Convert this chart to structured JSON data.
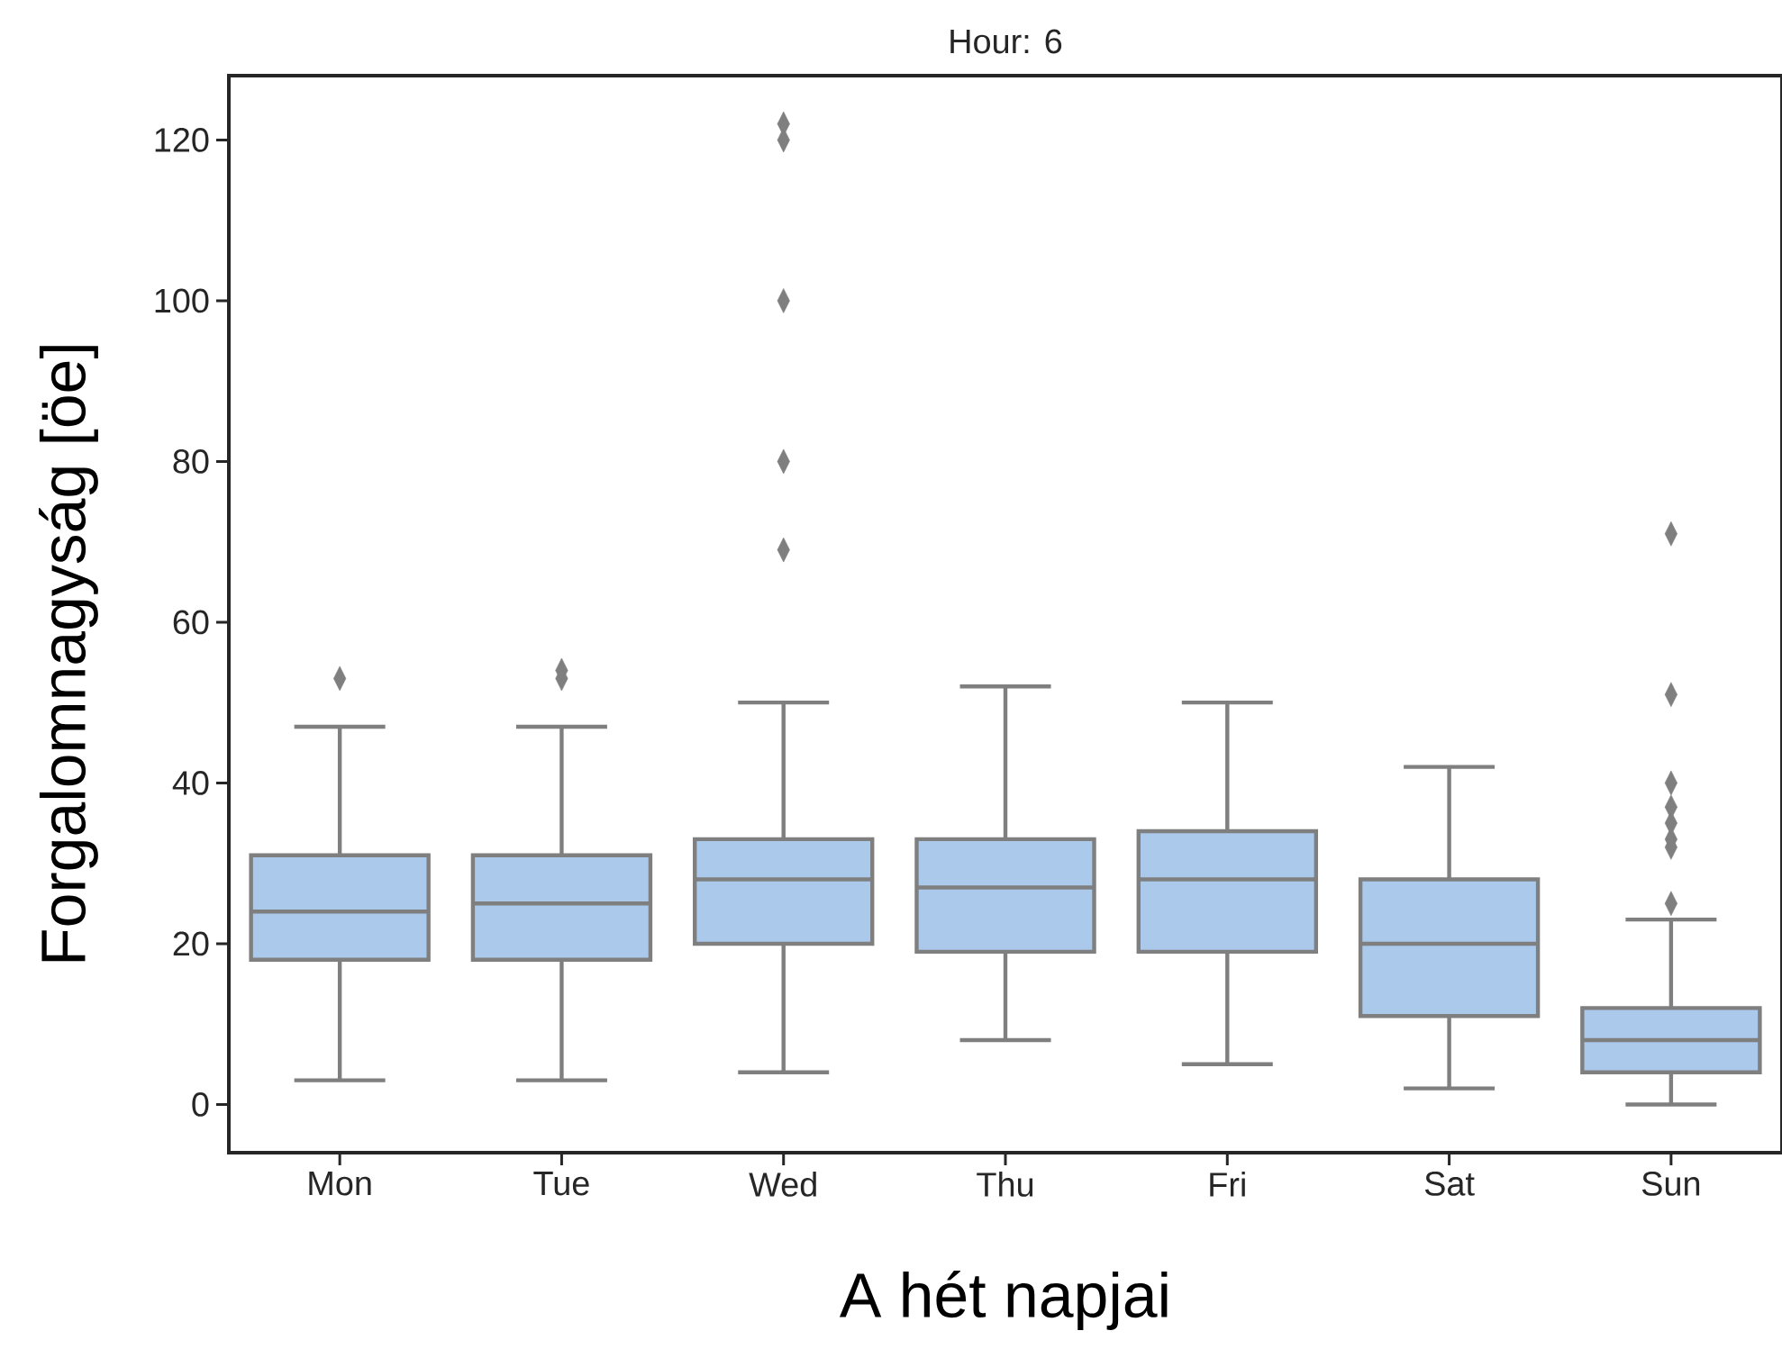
{
  "chart_data": {
    "type": "box",
    "title": "Hour: 6",
    "xlabel": "A hét napjai",
    "ylabel": "Forgalomnagyság [öe]",
    "categories": [
      "Mon",
      "Tue",
      "Wed",
      "Thu",
      "Fri",
      "Sat",
      "Sun"
    ],
    "color": "#abc9eb",
    "marker": "diamond",
    "grid": false,
    "ylim": [
      -6,
      128
    ],
    "yticks": [
      0,
      20,
      40,
      60,
      80,
      100,
      120
    ],
    "boxes": [
      {
        "low": 3,
        "q1": 18,
        "median": 24,
        "q3": 31,
        "high": 47,
        "outliers": [
          53
        ]
      },
      {
        "low": 3,
        "q1": 18,
        "median": 25,
        "q3": 31,
        "high": 47,
        "outliers": [
          53,
          54
        ]
      },
      {
        "low": 4,
        "q1": 20,
        "median": 28,
        "q3": 33,
        "high": 50,
        "outliers": [
          69,
          80,
          100,
          120,
          122
        ]
      },
      {
        "low": 8,
        "q1": 19,
        "median": 27,
        "q3": 33,
        "high": 52
      },
      {
        "low": 5,
        "q1": 19,
        "median": 28,
        "q3": 34,
        "high": 50
      },
      {
        "low": 2,
        "q1": 11,
        "median": 20,
        "q3": 28,
        "high": 42
      },
      {
        "low": 0,
        "q1": 4,
        "median": 8,
        "q3": 12,
        "high": 23,
        "outliers": [
          25,
          32,
          33,
          35,
          37,
          40,
          51,
          71
        ]
      }
    ]
  }
}
